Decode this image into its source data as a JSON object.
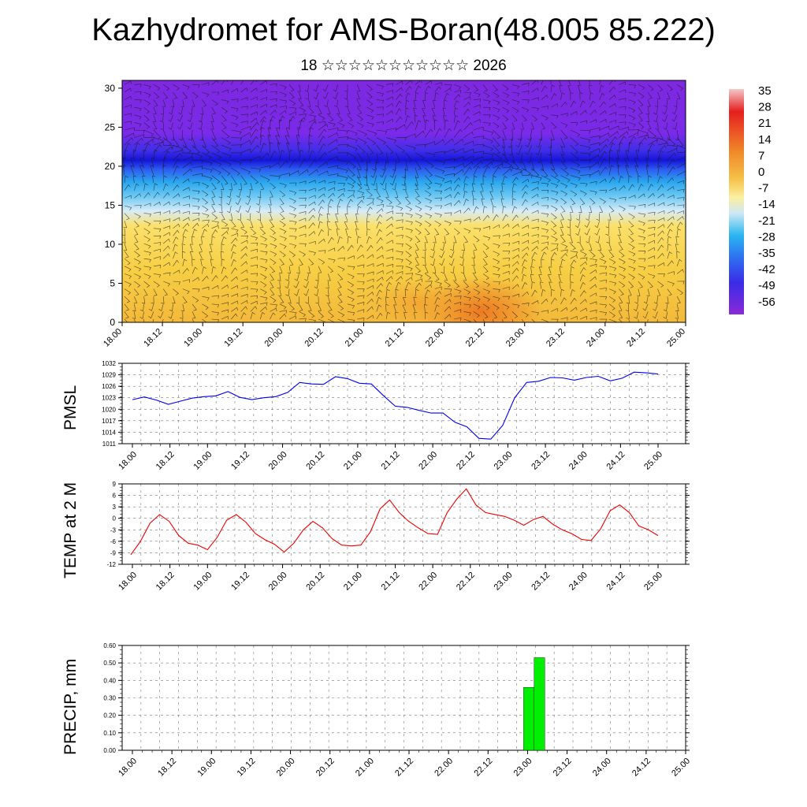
{
  "title": "Kazhydromet for AMS-Boran(48.005 85.222)",
  "subtitle": "18 ☆☆☆☆☆☆☆☆☆☆☆ 2026",
  "chart_data": [
    {
      "type": "heatmap",
      "name": "vertical-section",
      "description_of_axes": "time vs height levels",
      "x_ticks": [
        "18.00",
        "18.12",
        "19.00",
        "19.12",
        "20.00",
        "20.12",
        "21.00",
        "21.12",
        "22.00",
        "22.12",
        "23.00",
        "23.12",
        "24.00",
        "24.12",
        "25.00"
      ],
      "y_ticks": [
        0,
        5,
        10,
        15,
        20,
        25,
        30
      ],
      "ylim": [
        0,
        31
      ],
      "colorbar_labels": [
        "35",
        "28",
        "21",
        "14",
        "7",
        "0",
        "-7",
        "-14",
        "-21",
        "-28",
        "-35",
        "-42",
        "-49",
        "-56"
      ],
      "colorbar_values": [
        35,
        28,
        21,
        14,
        7,
        0,
        -7,
        -14,
        -21,
        -28,
        -35,
        -42,
        -49,
        -56
      ],
      "colors": {
        "warm": "#f5c542",
        "hot": "#ee7a22",
        "cold_top": "#7a1fe6",
        "jet": "#1a1ae6",
        "cyan": "#3fb8f0"
      }
    },
    {
      "type": "line",
      "name": "pmsl",
      "ylabel": "PMSL",
      "x_ticks": [
        "18.00",
        "18.12",
        "19.00",
        "19.12",
        "20.00",
        "20.12",
        "21.00",
        "21.12",
        "22.00",
        "22.12",
        "23.00",
        "23.12",
        "24.00",
        "24.12",
        "25.00"
      ],
      "y_ticks": [
        "1011",
        "1014",
        "1017",
        "1020",
        "1023",
        "1026",
        "1029",
        "1032"
      ],
      "ylim": [
        1011,
        1032
      ],
      "color": "#0000ee",
      "values": [
        1022.5,
        1023.2,
        1022.4,
        1021.3,
        1022.1,
        1022.9,
        1023.3,
        1023.5,
        1024.6,
        1023.1,
        1022.5,
        1023.0,
        1023.3,
        1024.4,
        1027.0,
        1026.6,
        1026.5,
        1028.5,
        1028.0,
        1026.8,
        1026.6,
        1023.6,
        1020.8,
        1020.5,
        1019.7,
        1019.0,
        1019.0,
        1016.6,
        1015.4,
        1012.4,
        1012.2,
        1015.8,
        1023.0,
        1027.0,
        1027.3,
        1028.3,
        1028.2,
        1027.6,
        1028.3,
        1028.6,
        1027.4,
        1028.1,
        1029.7,
        1029.5,
        1029.2
      ]
    },
    {
      "type": "line",
      "name": "temp2m",
      "ylabel": "TEMP at 2 M",
      "x_ticks": [
        "18.00",
        "18.12",
        "19.00",
        "19.12",
        "20.00",
        "20.12",
        "21.00",
        "21.12",
        "22.00",
        "22.12",
        "23.00",
        "23.12",
        "24.00",
        "24.12",
        "25.00"
      ],
      "y_ticks": [
        "-12",
        "-9",
        "-6",
        "-3",
        "0",
        "3",
        "6",
        "9"
      ],
      "ylim": [
        -12,
        9
      ],
      "color": "#ee0000",
      "values": [
        -9.5,
        -6.0,
        -1.3,
        1.0,
        -0.8,
        -4.5,
        -6.5,
        -7.0,
        -8.2,
        -5.0,
        -0.5,
        1.0,
        -1.0,
        -4.0,
        -5.6,
        -6.8,
        -8.8,
        -6.5,
        -3.0,
        -0.8,
        -2.5,
        -5.3,
        -7.0,
        -7.2,
        -7.0,
        -3.5,
        2.5,
        4.8,
        1.5,
        -0.8,
        -2.5,
        -4.0,
        -4.2,
        1.5,
        5.0,
        7.7,
        3.5,
        1.5,
        1.0,
        0.5,
        -0.5,
        -1.8,
        -0.3,
        0.5,
        -1.5,
        -3.0,
        -4.0,
        -5.5,
        -5.8,
        -2.8,
        2.0,
        3.5,
        1.5,
        -2.0,
        -3.0,
        -4.5
      ]
    },
    {
      "type": "bar",
      "name": "precip",
      "ylabel": "PRECIP, mm",
      "x_ticks": [
        "18.00",
        "18.12",
        "19.00",
        "19.12",
        "20.00",
        "20.12",
        "21.00",
        "21.12",
        "22.00",
        "22.12",
        "23.00",
        "23.12",
        "24.00",
        "24.12",
        "25.00"
      ],
      "y_ticks": [
        "0.00",
        "0.10",
        "0.20",
        "0.30",
        "0.40",
        "0.50",
        "0.60"
      ],
      "ylim": [
        0,
        0.6
      ],
      "color": "#00ee00",
      "bars": [
        {
          "x": 29.7,
          "width": 0.8,
          "value": 0.36
        },
        {
          "x": 30.5,
          "width": 0.8,
          "value": 0.53
        }
      ]
    }
  ]
}
